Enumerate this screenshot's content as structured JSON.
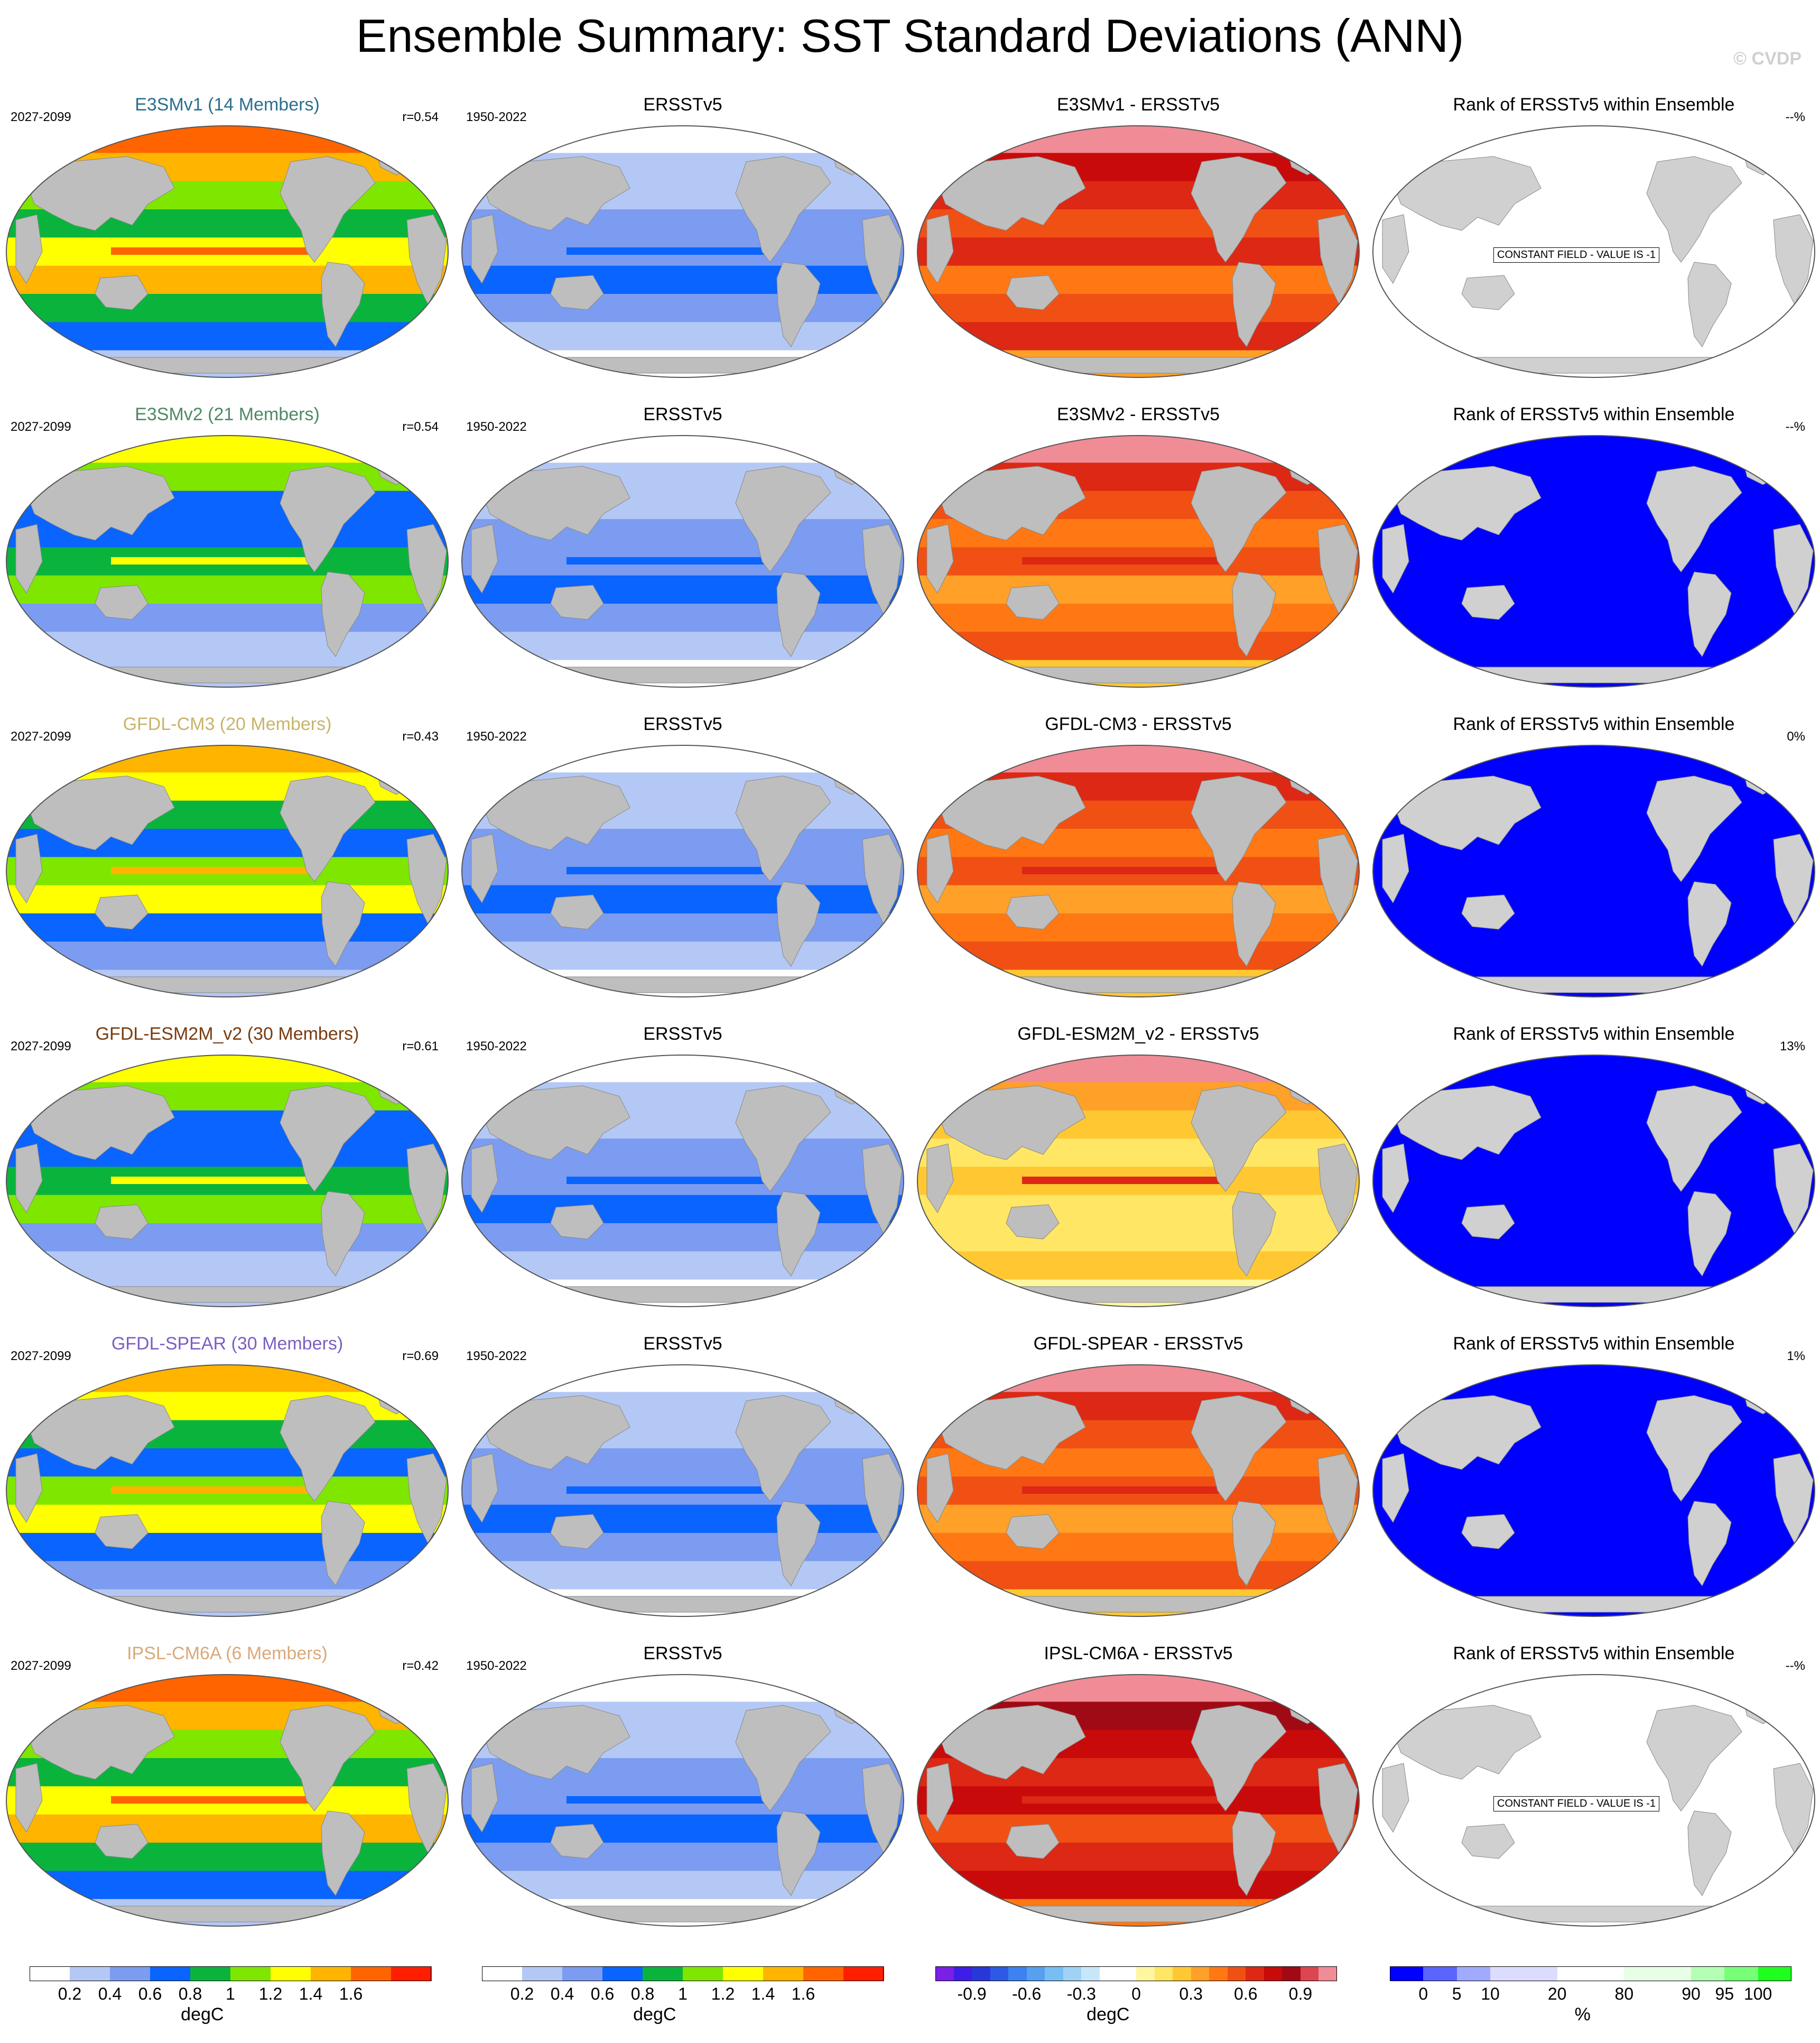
{
  "page": {
    "title": "Ensemble Summary: SST Standard Deviations (ANN)",
    "watermark": "© CVDP"
  },
  "chart_data": {
    "type": "heatmap",
    "description_rows": 6,
    "rows": [
      {
        "model": "E3SMv1 (14 Members)",
        "model_color": "#2a6f8f",
        "model_period": "2027-2099",
        "r": "r=0.54",
        "obs": "ERSSTv5",
        "obs_period": "1950-2022",
        "diff_title": "E3SMv1 - ERSSTv5",
        "rank_title": "Rank of ERSSTv5 within Ensemble",
        "rank_pct": "--%",
        "rank_constant": "CONSTANT FIELD - VALUE IS -1",
        "model_level": 0.75,
        "diff_level": 0.7,
        "rank_level": null
      },
      {
        "model": "E3SMv2 (21 Members)",
        "model_color": "#4d8a63",
        "model_period": "2027-2099",
        "r": "r=0.54",
        "obs": "ERSSTv5",
        "obs_period": "1950-2022",
        "diff_title": "E3SMv2 - ERSSTv5",
        "rank_title": "Rank of ERSSTv5 within Ensemble",
        "rank_pct": "--%",
        "rank_constant": "",
        "model_level": 0.55,
        "diff_level": 0.5,
        "rank_level": 0
      },
      {
        "model": "GFDL-CM3 (20 Members)",
        "model_color": "#c8b46a",
        "model_period": "2027-2099",
        "r": "r=0.43",
        "obs": "ERSSTv5",
        "obs_period": "1950-2022",
        "diff_title": "GFDL-CM3 - ERSSTv5",
        "rank_title": "Rank of ERSSTv5 within Ensemble",
        "rank_pct": "0%",
        "rank_constant": "",
        "model_level": 0.65,
        "diff_level": 0.6,
        "rank_level": 0
      },
      {
        "model": "GFDL-ESM2M_v2 (30 Members)",
        "model_color": "#7a3b10",
        "model_period": "2027-2099",
        "r": "r=0.61",
        "obs": "ERSSTv5",
        "obs_period": "1950-2022",
        "diff_title": "GFDL-ESM2M_v2 - ERSSTv5",
        "rank_title": "Rank of ERSSTv5 within Ensemble",
        "rank_pct": "13%",
        "rank_constant": "",
        "model_level": 0.45,
        "diff_level": 0.25,
        "rank_level": 0
      },
      {
        "model": "GFDL-SPEAR (30 Members)",
        "model_color": "#7b5fc4",
        "model_period": "2027-2099",
        "r": "r=0.69",
        "obs": "ERSSTv5",
        "obs_period": "1950-2022",
        "diff_title": "GFDL-SPEAR - ERSSTv5",
        "rank_title": "Rank of ERSSTv5 within Ensemble",
        "rank_pct": "1%",
        "rank_constant": "",
        "model_level": 0.6,
        "diff_level": 0.55,
        "rank_level": 0
      },
      {
        "model": "IPSL-CM6A (6 Members)",
        "model_color": "#d9a97a",
        "model_period": "2027-2099",
        "r": "r=0.42",
        "obs": "ERSSTv5",
        "obs_period": "1950-2022",
        "diff_title": "IPSL-CM6A - ERSSTv5",
        "rank_title": "Rank of ERSSTv5 within Ensemble",
        "rank_pct": "--%",
        "rank_constant": "CONSTANT FIELD - VALUE IS -1",
        "model_level": 0.8,
        "diff_level": 0.75,
        "rank_level": null
      }
    ],
    "colorbars": [
      {
        "unit": "degC",
        "colors": [
          "#ffffff",
          "#b4c8f5",
          "#7b9cf0",
          "#0a64ff",
          "#0ab43c",
          "#7fe600",
          "#ffff00",
          "#ffb400",
          "#ff6400",
          "#ff1e00"
        ],
        "ticks": [
          "0.2",
          "0.4",
          "0.6",
          "0.8",
          "1",
          "1.2",
          "1.4",
          "1.6"
        ]
      },
      {
        "unit": "degC",
        "colors": [
          "#ffffff",
          "#b4c8f5",
          "#7b9cf0",
          "#0a64ff",
          "#0ab43c",
          "#7fe600",
          "#ffff00",
          "#ffb400",
          "#ff6400",
          "#ff1e00"
        ],
        "ticks": [
          "0.2",
          "0.4",
          "0.6",
          "0.8",
          "1",
          "1.2",
          "1.4",
          "1.6"
        ]
      },
      {
        "unit": "degC",
        "colors": [
          "#7a1fe6",
          "#3c1ee6",
          "#2838d8",
          "#2c5ae6",
          "#3c82f0",
          "#56a0f0",
          "#78bef5",
          "#a0d2f5",
          "#c8e6fa",
          "#ffffff",
          "#ffffff",
          "#fff6a0",
          "#ffe664",
          "#ffc832",
          "#ffa028",
          "#ff7814",
          "#f05014",
          "#dc2814",
          "#c80a0a",
          "#a00a14",
          "#dc4650",
          "#f08c96"
        ],
        "ticks": [
          "-0.9",
          "-0.6",
          "-0.3",
          "0",
          "0.3",
          "0.6",
          "0.9"
        ]
      },
      {
        "unit": "%",
        "colors": [
          "#0000ff",
          "#5a64ff",
          "#a0aaff",
          "#dcdcff",
          "#dcdcff",
          "#ffffff",
          "#ffffff",
          "#e6ffe6",
          "#e6ffe6",
          "#b4ffb4",
          "#78ff78",
          "#1eff1e"
        ],
        "ticks": [
          "0",
          "5",
          "10",
          "20",
          "80",
          "90",
          "95",
          "100"
        ]
      }
    ]
  },
  "icons": {
    "map": "world-map-icon"
  }
}
